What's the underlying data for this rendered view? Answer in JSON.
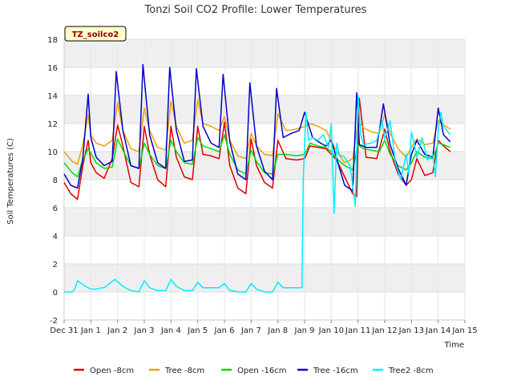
{
  "chart_data": {
    "type": "line",
    "title": "Tonzi Soil CO2 Profile: Lower Temperatures",
    "xlabel": "Time",
    "ylabel": "Soil Temperatures (C)",
    "site_badge": "TZ_soilco2",
    "ylim": [
      -2,
      18
    ],
    "yticks": [
      -2,
      0,
      2,
      4,
      6,
      8,
      10,
      12,
      14,
      16,
      18
    ],
    "xlim": [
      0,
      15
    ],
    "xticks": [
      {
        "x": 0,
        "label": "Dec 31"
      },
      {
        "x": 1,
        "label": "Jan 1"
      },
      {
        "x": 2,
        "label": "Jan 2"
      },
      {
        "x": 3,
        "label": "Jan 3"
      },
      {
        "x": 4,
        "label": "Jan 4"
      },
      {
        "x": 5,
        "label": "Jan 5"
      },
      {
        "x": 6,
        "label": "Jan 6"
      },
      {
        "x": 7,
        "label": "Jan 7"
      },
      {
        "x": 8,
        "label": "Jan 8"
      },
      {
        "x": 9,
        "label": "Jan 9"
      },
      {
        "x": 10,
        "label": "Jan 10"
      },
      {
        "x": 11,
        "label": "Jan 11"
      },
      {
        "x": 12,
        "label": "Jan 12"
      },
      {
        "x": 13,
        "label": "Jan 13"
      },
      {
        "x": 14,
        "label": "Jan 14"
      },
      {
        "x": 15,
        "label": "Jan 15"
      }
    ],
    "grid": true,
    "legend_position": "bottom",
    "series": [
      {
        "name": "Open -8cm",
        "color": "#dd0000",
        "x": [
          0.0,
          0.25,
          0.5,
          0.7,
          0.9,
          1.0,
          1.2,
          1.5,
          1.8,
          2.0,
          2.2,
          2.5,
          2.8,
          3.0,
          3.2,
          3.5,
          3.8,
          4.0,
          4.2,
          4.5,
          4.8,
          5.0,
          5.2,
          5.5,
          5.8,
          6.0,
          6.2,
          6.5,
          6.8,
          7.0,
          7.2,
          7.5,
          7.8,
          8.0,
          8.3,
          8.7,
          9.0,
          9.2,
          9.5,
          9.8,
          10.0,
          10.2,
          10.5,
          10.8,
          10.95,
          11.05,
          11.3,
          11.7,
          12.0,
          12.2,
          12.5,
          12.8,
          13.0,
          13.2,
          13.5,
          13.8,
          14.0,
          14.2,
          14.45
        ],
        "y": [
          7.8,
          7.0,
          6.6,
          9.0,
          10.8,
          9.2,
          8.5,
          8.1,
          9.5,
          11.9,
          10.4,
          7.8,
          7.5,
          11.8,
          9.8,
          8.0,
          7.5,
          11.8,
          9.6,
          8.2,
          8.0,
          11.8,
          9.8,
          9.7,
          9.5,
          12.1,
          9.0,
          7.4,
          7.0,
          10.9,
          9.0,
          7.8,
          7.4,
          10.8,
          9.5,
          9.4,
          9.5,
          10.4,
          10.3,
          10.2,
          9.8,
          9.4,
          8.2,
          7.0,
          6.8,
          13.8,
          9.6,
          9.5,
          11.6,
          10.0,
          8.4,
          7.6,
          8.0,
          9.5,
          8.3,
          8.5,
          10.8,
          10.4,
          10.0
        ]
      },
      {
        "name": "Tree -8cm",
        "color": "#f0a000",
        "x": [
          0.0,
          0.3,
          0.5,
          0.7,
          0.9,
          1.0,
          1.2,
          1.5,
          1.8,
          2.0,
          2.2,
          2.5,
          2.8,
          3.0,
          3.2,
          3.5,
          3.8,
          4.0,
          4.2,
          4.5,
          4.8,
          5.0,
          5.2,
          5.5,
          5.8,
          6.0,
          6.2,
          6.5,
          6.8,
          7.0,
          7.2,
          7.5,
          7.8,
          8.0,
          8.3,
          8.7,
          9.0,
          9.2,
          9.5,
          9.8,
          10.0,
          10.2,
          10.5,
          10.8,
          11.0,
          11.2,
          11.5,
          11.8,
          12.0,
          12.2,
          12.5,
          12.8,
          13.0,
          13.2,
          13.5,
          13.8,
          14.0,
          14.2,
          14.45
        ],
        "y": [
          10.0,
          9.3,
          9.1,
          10.5,
          12.6,
          11.2,
          10.6,
          10.4,
          10.8,
          13.5,
          11.5,
          10.2,
          10.0,
          13.1,
          11.5,
          10.3,
          10.1,
          13.6,
          11.8,
          10.6,
          10.8,
          13.7,
          12.0,
          11.8,
          11.5,
          12.5,
          10.8,
          9.7,
          9.5,
          11.3,
          10.4,
          9.8,
          9.7,
          12.7,
          11.5,
          11.6,
          11.8,
          12.0,
          11.8,
          11.5,
          10.8,
          10.0,
          9.2,
          9.5,
          12.2,
          11.7,
          11.4,
          11.3,
          12.7,
          11.3,
          10.2,
          9.6,
          10.3,
          10.9,
          10.5,
          10.6,
          12.2,
          11.9,
          11.6
        ]
      },
      {
        "name": "Open -16cm",
        "color": "#00dd00",
        "x": [
          0.0,
          0.3,
          0.5,
          0.7,
          0.9,
          1.0,
          1.2,
          1.5,
          1.8,
          2.0,
          2.2,
          2.5,
          2.8,
          3.0,
          3.2,
          3.5,
          3.8,
          4.0,
          4.2,
          4.5,
          4.8,
          5.0,
          5.2,
          5.5,
          5.8,
          6.0,
          6.2,
          6.5,
          6.8,
          7.0,
          7.2,
          7.5,
          7.8,
          8.0,
          8.3,
          8.7,
          9.0,
          9.2,
          9.5,
          9.8,
          10.0,
          10.2,
          10.5,
          10.8,
          11.0,
          11.2,
          11.5,
          11.8,
          12.0,
          12.2,
          12.5,
          12.8,
          13.0,
          13.2,
          13.5,
          13.8,
          14.0,
          14.2,
          14.45
        ],
        "y": [
          9.2,
          8.5,
          8.2,
          9.4,
          10.2,
          9.9,
          9.2,
          8.8,
          8.9,
          10.9,
          10.1,
          9.0,
          8.8,
          10.6,
          9.8,
          9.0,
          8.8,
          10.8,
          10.0,
          9.2,
          9.1,
          11.0,
          10.4,
          10.2,
          10.0,
          11.2,
          9.8,
          8.7,
          8.4,
          10.1,
          9.3,
          8.5,
          8.4,
          9.8,
          9.8,
          9.7,
          9.8,
          10.6,
          10.4,
          10.3,
          10.0,
          9.5,
          9.0,
          8.7,
          10.5,
          10.2,
          10.1,
          10.0,
          10.8,
          9.8,
          9.0,
          8.7,
          9.2,
          10.0,
          9.6,
          9.5,
          10.6,
          10.5,
          10.3
        ]
      },
      {
        "name": "Tree -16cm",
        "color": "#0000cc",
        "x": [
          0.0,
          0.25,
          0.5,
          0.7,
          0.9,
          1.0,
          1.2,
          1.5,
          1.8,
          1.95,
          2.2,
          2.5,
          2.8,
          2.95,
          3.2,
          3.5,
          3.8,
          3.95,
          4.2,
          4.5,
          4.8,
          4.95,
          5.2,
          5.5,
          5.8,
          5.95,
          6.2,
          6.5,
          6.8,
          6.95,
          7.2,
          7.5,
          7.8,
          7.95,
          8.2,
          8.5,
          8.8,
          9.0,
          9.3,
          9.6,
          9.8,
          10.0,
          10.2,
          10.5,
          10.8,
          10.95,
          11.05,
          11.3,
          11.7,
          11.95,
          12.2,
          12.5,
          12.8,
          13.0,
          13.2,
          13.5,
          13.8,
          14.0,
          14.2,
          14.45
        ],
        "y": [
          8.4,
          7.6,
          7.4,
          9.5,
          14.1,
          11.0,
          9.6,
          9.0,
          9.3,
          15.7,
          11.5,
          9.0,
          8.8,
          16.2,
          11.2,
          9.2,
          8.8,
          16.0,
          11.5,
          9.3,
          9.4,
          15.9,
          11.8,
          10.6,
          10.3,
          15.5,
          10.7,
          8.4,
          8.0,
          14.9,
          10.4,
          8.6,
          8.0,
          14.5,
          11.0,
          11.3,
          11.5,
          12.8,
          11.0,
          10.6,
          10.4,
          10.8,
          9.5,
          7.6,
          7.2,
          14.2,
          10.5,
          10.3,
          10.3,
          13.4,
          10.5,
          8.8,
          7.6,
          9.8,
          10.8,
          9.8,
          9.6,
          13.1,
          11.2,
          10.7
        ]
      },
      {
        "name": "Tree2 -8cm",
        "color": "#00eeff",
        "x": [
          0.0,
          0.3,
          0.4,
          0.5,
          0.8,
          1.0,
          1.2,
          1.4,
          1.5,
          1.9,
          2.2,
          2.5,
          2.8,
          3.0,
          3.2,
          3.5,
          3.8,
          4.0,
          4.2,
          4.5,
          4.8,
          5.0,
          5.2,
          5.5,
          5.8,
          6.0,
          6.2,
          6.5,
          6.8,
          7.0,
          7.2,
          7.5,
          7.8,
          8.0,
          8.2,
          8.5,
          8.8,
          8.9,
          8.95,
          9.05,
          9.15,
          9.3,
          9.5,
          9.7,
          9.9,
          10.0,
          10.1,
          10.2,
          10.3,
          10.5,
          10.7,
          10.9,
          11.0,
          11.1,
          11.2,
          11.5,
          11.7,
          11.9,
          12.0,
          12.2,
          12.4,
          12.6,
          12.8,
          12.9,
          13.0,
          13.1,
          13.2,
          13.4,
          13.6,
          13.8,
          13.9,
          14.0,
          14.1,
          14.2,
          14.45
        ],
        "y": [
          0.0,
          0.0,
          0.2,
          0.8,
          0.4,
          0.2,
          0.2,
          0.3,
          0.3,
          0.9,
          0.4,
          0.1,
          0.0,
          0.8,
          0.3,
          0.1,
          0.1,
          0.9,
          0.4,
          0.1,
          0.1,
          0.7,
          0.3,
          0.3,
          0.3,
          0.6,
          0.1,
          0.0,
          0.0,
          0.6,
          0.2,
          0.0,
          0.0,
          0.7,
          0.3,
          0.3,
          0.3,
          0.3,
          8.0,
          12.8,
          10.8,
          11.0,
          10.8,
          11.2,
          10.3,
          12.0,
          5.6,
          10.6,
          9.8,
          9.6,
          9.0,
          6.1,
          14.0,
          11.2,
          10.5,
          10.6,
          10.8,
          12.2,
          10.9,
          12.2,
          9.2,
          8.0,
          9.8,
          8.4,
          11.4,
          10.6,
          9.6,
          11.0,
          9.4,
          9.8,
          8.2,
          11.5,
          12.8,
          11.8,
          11.2
        ]
      }
    ]
  }
}
